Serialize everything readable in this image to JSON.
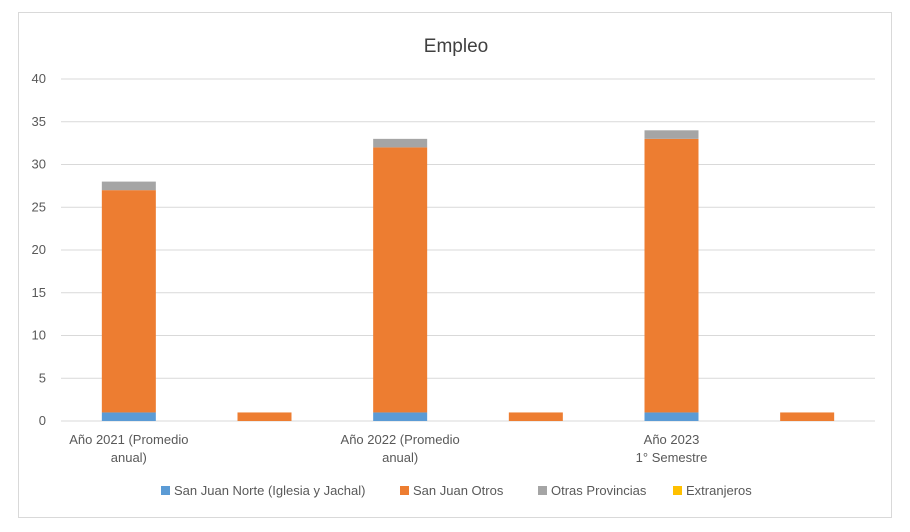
{
  "chart_data": {
    "type": "bar",
    "stacked": true,
    "title": "Empleo",
    "xlabel": "",
    "ylabel": "",
    "ylim": [
      0,
      40
    ],
    "yticks": [
      0,
      5,
      10,
      15,
      20,
      25,
      30,
      35,
      40
    ],
    "grid": true,
    "legend_position": "bottom",
    "categories": [
      [
        "Año 2021 (Promedio",
        "anual)"
      ],
      [
        ""
      ],
      [
        "Año 2022 (Promedio",
        "anual)"
      ],
      [
        ""
      ],
      [
        "Año 2023",
        "1° Semestre"
      ],
      [
        ""
      ]
    ],
    "series": [
      {
        "name": "San Juan Norte (Iglesia y Jachal)",
        "color": "#5b9bd5",
        "values": [
          1,
          0,
          1,
          0,
          1,
          0
        ]
      },
      {
        "name": "San Juan Otros",
        "color": "#ed7d31",
        "values": [
          26,
          1,
          31,
          1,
          32,
          1
        ]
      },
      {
        "name": "Otras Provincias",
        "color": "#a5a5a5",
        "values": [
          1,
          0,
          1,
          0,
          1,
          0
        ]
      },
      {
        "name": "Extranjeros",
        "color": "#ffc000",
        "values": [
          0,
          0,
          0,
          0,
          0,
          0
        ]
      }
    ]
  }
}
